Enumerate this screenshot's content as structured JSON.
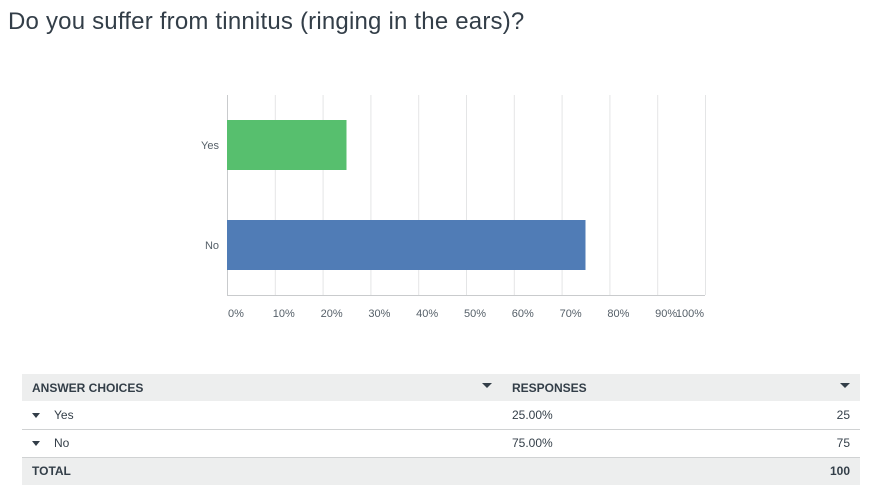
{
  "question": "Do you suffer from tinnitus (ringing in the ears)?",
  "chart_data": {
    "type": "bar",
    "orientation": "horizontal",
    "categories": [
      "Yes",
      "No"
    ],
    "values": [
      25,
      75
    ],
    "colors": [
      "#57bf6e",
      "#507cb6"
    ],
    "xlim": [
      0,
      100
    ],
    "xticks": [
      "0%",
      "10%",
      "20%",
      "30%",
      "40%",
      "50%",
      "60%",
      "70%",
      "80%",
      "90%",
      "100%"
    ],
    "grid": true
  },
  "table": {
    "headers": {
      "answer": "ANSWER CHOICES",
      "responses": "RESPONSES"
    },
    "rows": [
      {
        "answer": "Yes",
        "percent": "25.00%",
        "count": "25"
      },
      {
        "answer": "No",
        "percent": "75.00%",
        "count": "75"
      }
    ],
    "total_label": "TOTAL",
    "total_count": "100"
  }
}
